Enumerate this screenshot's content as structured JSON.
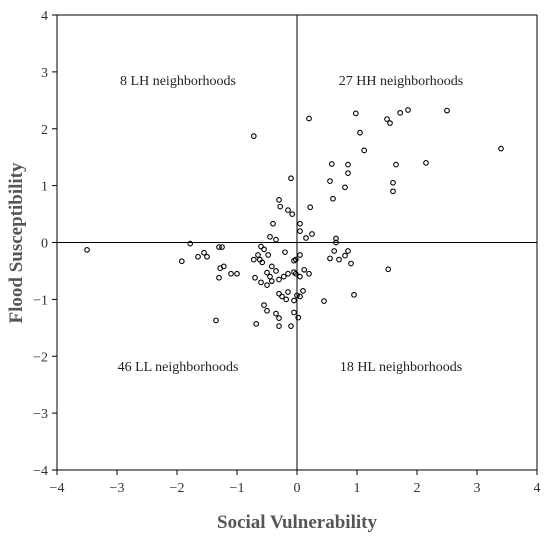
{
  "chart_data": {
    "type": "scatter",
    "xlabel": "Social Vulnerability",
    "ylabel": "Flood Susceptibility",
    "xlim": [
      -4,
      4
    ],
    "ylim": [
      -4,
      4
    ],
    "xticks": [
      -4,
      -3,
      -2,
      -1,
      0,
      1,
      2,
      3,
      4
    ],
    "yticks": [
      -4,
      -3,
      -2,
      -1,
      0,
      1,
      2,
      3,
      4
    ],
    "grid": false,
    "reference_lines": {
      "x": 0,
      "y": 0
    },
    "quadrant_labels": {
      "LH": "8 LH neighborhoods",
      "HH": "27 HH neighborhoods",
      "LL": "46 LL neighborhoods",
      "HL": "18 HL neighborhoods"
    },
    "marker": "open circle",
    "points": [
      [
        -3.5,
        -0.13
      ],
      [
        -1.78,
        -0.02
      ],
      [
        -1.92,
        -0.33
      ],
      [
        -1.65,
        -0.25
      ],
      [
        -1.55,
        -0.18
      ],
      [
        -1.5,
        -0.25
      ],
      [
        -1.3,
        -0.08
      ],
      [
        -1.25,
        -0.08
      ],
      [
        -1.28,
        -0.45
      ],
      [
        -1.22,
        -0.42
      ],
      [
        -1.1,
        -0.55
      ],
      [
        -1.0,
        -0.55
      ],
      [
        -1.3,
        -0.62
      ],
      [
        -1.35,
        -1.37
      ],
      [
        -0.72,
        1.87
      ],
      [
        -0.1,
        1.13
      ],
      [
        -0.3,
        0.75
      ],
      [
        -0.28,
        0.63
      ],
      [
        -0.15,
        0.57
      ],
      [
        -0.08,
        0.5
      ],
      [
        -0.4,
        0.33
      ],
      [
        -0.45,
        0.1
      ],
      [
        -0.35,
        0.05
      ],
      [
        -0.6,
        -0.07
      ],
      [
        -0.55,
        -0.12
      ],
      [
        -0.65,
        -0.22
      ],
      [
        -0.48,
        -0.22
      ],
      [
        -0.2,
        -0.17
      ],
      [
        -0.72,
        -0.3
      ],
      [
        -0.58,
        -0.35
      ],
      [
        -0.62,
        -0.3
      ],
      [
        -0.42,
        -0.42
      ],
      [
        -0.35,
        -0.5
      ],
      [
        -0.5,
        -0.53
      ],
      [
        -0.45,
        -0.6
      ],
      [
        -0.3,
        -0.65
      ],
      [
        -0.42,
        -0.68
      ],
      [
        -0.5,
        -0.75
      ],
      [
        -0.7,
        -0.62
      ],
      [
        -0.6,
        -0.7
      ],
      [
        -0.22,
        -0.6
      ],
      [
        -0.15,
        -0.55
      ],
      [
        -0.05,
        -0.52
      ],
      [
        -0.3,
        -0.9
      ],
      [
        -0.25,
        -0.95
      ],
      [
        -0.15,
        -0.87
      ],
      [
        -0.18,
        -1.0
      ],
      [
        -0.05,
        -1.02
      ],
      [
        0.0,
        -0.93
      ],
      [
        0.05,
        -0.95
      ],
      [
        -0.55,
        -1.1
      ],
      [
        -0.5,
        -1.2
      ],
      [
        -0.35,
        -1.25
      ],
      [
        -0.3,
        -1.33
      ],
      [
        -0.3,
        -1.47
      ],
      [
        -0.68,
        -1.43
      ],
      [
        -0.1,
        -1.47
      ],
      [
        -0.05,
        -1.23
      ],
      [
        0.02,
        -1.32
      ],
      [
        -0.02,
        -0.3
      ],
      [
        -0.05,
        -0.32
      ],
      [
        0.05,
        -0.22
      ],
      [
        -0.02,
        -0.55
      ],
      [
        0.05,
        -0.6
      ],
      [
        0.12,
        -0.48
      ],
      [
        0.2,
        -0.55
      ],
      [
        0.1,
        -0.85
      ],
      [
        0.45,
        -1.03
      ],
      [
        0.05,
        0.33
      ],
      [
        0.05,
        0.2
      ],
      [
        0.15,
        0.08
      ],
      [
        0.25,
        0.15
      ],
      [
        0.22,
        0.62
      ],
      [
        0.2,
        2.18
      ],
      [
        0.55,
        1.08
      ],
      [
        0.58,
        1.38
      ],
      [
        0.6,
        0.77
      ],
      [
        0.8,
        0.97
      ],
      [
        0.85,
        1.22
      ],
      [
        0.85,
        1.37
      ],
      [
        0.65,
        0.07
      ],
      [
        0.65,
        0.0
      ],
      [
        0.85,
        -0.15
      ],
      [
        0.8,
        -0.23
      ],
      [
        0.7,
        -0.3
      ],
      [
        0.55,
        -0.28
      ],
      [
        0.62,
        -0.15
      ],
      [
        0.9,
        -0.37
      ],
      [
        0.95,
        -0.92
      ],
      [
        0.98,
        2.27
      ],
      [
        1.05,
        1.93
      ],
      [
        1.12,
        1.62
      ],
      [
        1.5,
        2.17
      ],
      [
        1.55,
        2.1
      ],
      [
        1.72,
        2.28
      ],
      [
        1.85,
        2.33
      ],
      [
        2.5,
        2.32
      ],
      [
        1.6,
        1.05
      ],
      [
        1.6,
        0.9
      ],
      [
        1.65,
        1.37
      ],
      [
        2.15,
        1.4
      ],
      [
        3.4,
        1.65
      ],
      [
        1.52,
        -0.47
      ]
    ]
  }
}
